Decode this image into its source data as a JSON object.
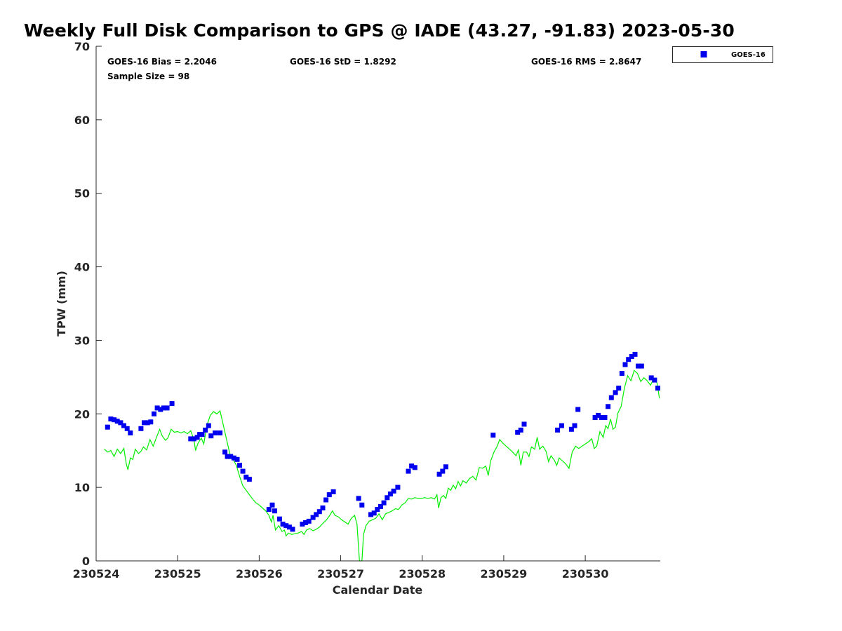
{
  "chart_data": {
    "type": "scatter",
    "title": "Weekly Full Disk Comparison to GPS @ IADE (43.27, -91.83) 2023-05-30",
    "xlabel": "Calendar Date",
    "ylabel": "TPW (mm)",
    "xlim": [
      230524,
      230530.92
    ],
    "ylim": [
      0,
      70
    ],
    "x_ticks": [
      "230524",
      "230525",
      "230526",
      "230527",
      "230528",
      "230529",
      "230530"
    ],
    "y_ticks": [
      "0",
      "10",
      "20",
      "30",
      "40",
      "50",
      "60",
      "70"
    ],
    "grid": false,
    "legend_position": "top-right outside",
    "stats": {
      "bias": "GOES-16 Bias = 2.2046",
      "std": "GOES-16 StD = 1.8292",
      "rms": "GOES-16 RMS = 2.8647",
      "sample_size": "Sample Size = 98"
    },
    "series": [
      {
        "name": "GOES-16",
        "kind": "markers",
        "color": "#0000ee",
        "points": [
          [
            230524.14,
            18.2
          ],
          [
            230524.18,
            19.3
          ],
          [
            230524.22,
            19.2
          ],
          [
            230524.26,
            19.0
          ],
          [
            230524.3,
            18.8
          ],
          [
            230524.34,
            18.4
          ],
          [
            230524.38,
            18.0
          ],
          [
            230524.42,
            17.4
          ],
          [
            230524.55,
            18.0
          ],
          [
            230524.59,
            18.8
          ],
          [
            230524.63,
            18.8
          ],
          [
            230524.67,
            18.9
          ],
          [
            230524.71,
            20.0
          ],
          [
            230524.75,
            20.8
          ],
          [
            230524.79,
            20.6
          ],
          [
            230524.83,
            20.8
          ],
          [
            230524.87,
            20.8
          ],
          [
            230524.93,
            21.4
          ],
          [
            230525.16,
            16.6
          ],
          [
            230525.2,
            16.6
          ],
          [
            230525.24,
            16.8
          ],
          [
            230525.27,
            17.2
          ],
          [
            230525.3,
            17.2
          ],
          [
            230525.34,
            17.8
          ],
          [
            230525.38,
            18.4
          ],
          [
            230525.41,
            17.0
          ],
          [
            230525.46,
            17.4
          ],
          [
            230525.52,
            17.4
          ],
          [
            230525.58,
            14.8
          ],
          [
            230525.61,
            14.2
          ],
          [
            230525.65,
            14.2
          ],
          [
            230525.69,
            14.0
          ],
          [
            230525.73,
            13.8
          ],
          [
            230525.76,
            13.0
          ],
          [
            230525.8,
            12.2
          ],
          [
            230525.84,
            11.4
          ],
          [
            230525.88,
            11.1
          ],
          [
            230526.12,
            7.0
          ],
          [
            230526.16,
            7.6
          ],
          [
            230526.19,
            6.8
          ],
          [
            230526.25,
            5.7
          ],
          [
            230526.29,
            5.0
          ],
          [
            230526.33,
            4.8
          ],
          [
            230526.37,
            4.6
          ],
          [
            230526.41,
            4.3
          ],
          [
            230526.53,
            5.0
          ],
          [
            230526.57,
            5.2
          ],
          [
            230526.61,
            5.4
          ],
          [
            230526.66,
            5.9
          ],
          [
            230526.7,
            6.3
          ],
          [
            230526.74,
            6.7
          ],
          [
            230526.78,
            7.2
          ],
          [
            230526.82,
            8.3
          ],
          [
            230526.86,
            9.0
          ],
          [
            230526.91,
            9.4
          ],
          [
            230527.22,
            8.5
          ],
          [
            230527.26,
            7.6
          ],
          [
            230527.37,
            6.3
          ],
          [
            230527.41,
            6.5
          ],
          [
            230527.45,
            7.0
          ],
          [
            230527.49,
            7.4
          ],
          [
            230527.53,
            7.9
          ],
          [
            230527.57,
            8.6
          ],
          [
            230527.61,
            9.1
          ],
          [
            230527.65,
            9.5
          ],
          [
            230527.7,
            10.0
          ],
          [
            230527.83,
            12.2
          ],
          [
            230527.87,
            12.9
          ],
          [
            230527.91,
            12.7
          ],
          [
            230528.21,
            11.8
          ],
          [
            230528.25,
            12.2
          ],
          [
            230528.29,
            12.8
          ],
          [
            230528.87,
            17.1
          ],
          [
            230529.17,
            17.5
          ],
          [
            230529.21,
            17.8
          ],
          [
            230529.25,
            18.6
          ],
          [
            230529.66,
            17.8
          ],
          [
            230529.71,
            18.4
          ],
          [
            230529.83,
            17.9
          ],
          [
            230529.87,
            18.4
          ],
          [
            230529.91,
            20.6
          ],
          [
            230530.12,
            19.5
          ],
          [
            230530.16,
            19.8
          ],
          [
            230530.2,
            19.5
          ],
          [
            230530.24,
            19.5
          ],
          [
            230530.28,
            21.0
          ],
          [
            230530.32,
            22.2
          ],
          [
            230530.37,
            22.9
          ],
          [
            230530.41,
            23.5
          ],
          [
            230530.45,
            25.5
          ],
          [
            230530.49,
            26.7
          ],
          [
            230530.53,
            27.4
          ],
          [
            230530.57,
            27.8
          ],
          [
            230530.61,
            28.1
          ],
          [
            230530.65,
            26.5
          ],
          [
            230530.69,
            26.5
          ],
          [
            230530.81,
            24.9
          ],
          [
            230530.85,
            24.6
          ],
          [
            230530.89,
            23.5
          ]
        ]
      },
      {
        "kind": "line",
        "color": "#00ee00",
        "points": [
          [
            230524.1,
            15.2
          ],
          [
            230524.14,
            14.8
          ],
          [
            230524.18,
            15.0
          ],
          [
            230524.22,
            14.2
          ],
          [
            230524.26,
            15.2
          ],
          [
            230524.3,
            14.6
          ],
          [
            230524.34,
            15.3
          ],
          [
            230524.37,
            13.2
          ],
          [
            230524.39,
            12.4
          ],
          [
            230524.42,
            14.0
          ],
          [
            230524.45,
            13.8
          ],
          [
            230524.48,
            15.2
          ],
          [
            230524.52,
            14.6
          ],
          [
            230524.55,
            14.9
          ],
          [
            230524.58,
            15.5
          ],
          [
            230524.62,
            15.1
          ],
          [
            230524.66,
            16.5
          ],
          [
            230524.7,
            15.6
          ],
          [
            230524.74,
            16.8
          ],
          [
            230524.78,
            17.9
          ],
          [
            230524.81,
            17.0
          ],
          [
            230524.85,
            16.4
          ],
          [
            230524.88,
            16.7
          ],
          [
            230524.92,
            17.9
          ],
          [
            230524.96,
            17.5
          ],
          [
            230525.0,
            17.6
          ],
          [
            230525.04,
            17.4
          ],
          [
            230525.08,
            17.6
          ],
          [
            230525.12,
            17.3
          ],
          [
            230525.16,
            17.7
          ],
          [
            230525.2,
            16.5
          ],
          [
            230525.22,
            15.0
          ],
          [
            230525.25,
            16.0
          ],
          [
            230525.29,
            16.7
          ],
          [
            230525.32,
            15.9
          ],
          [
            230525.36,
            18.5
          ],
          [
            230525.4,
            19.8
          ],
          [
            230525.44,
            20.3
          ],
          [
            230525.48,
            20.0
          ],
          [
            230525.52,
            20.4
          ],
          [
            230525.56,
            18.5
          ],
          [
            230525.6,
            16.5
          ],
          [
            230525.64,
            14.6
          ],
          [
            230525.68,
            13.8
          ],
          [
            230525.72,
            13.0
          ],
          [
            230525.76,
            11.5
          ],
          [
            230525.8,
            10.2
          ],
          [
            230525.84,
            9.6
          ],
          [
            230525.88,
            9.0
          ],
          [
            230525.92,
            8.4
          ],
          [
            230525.96,
            7.9
          ],
          [
            230526.0,
            7.6
          ],
          [
            230526.04,
            7.2
          ],
          [
            230526.08,
            6.8
          ],
          [
            230526.12,
            6.2
          ],
          [
            230526.15,
            5.3
          ],
          [
            230526.17,
            6.2
          ],
          [
            230526.2,
            4.2
          ],
          [
            230526.24,
            4.8
          ],
          [
            230526.28,
            4.0
          ],
          [
            230526.31,
            4.2
          ],
          [
            230526.33,
            3.4
          ],
          [
            230526.36,
            3.8
          ],
          [
            230526.4,
            3.6
          ],
          [
            230526.44,
            3.7
          ],
          [
            230526.48,
            3.8
          ],
          [
            230526.52,
            4.0
          ],
          [
            230526.55,
            3.6
          ],
          [
            230526.58,
            4.2
          ],
          [
            230526.62,
            4.4
          ],
          [
            230526.66,
            4.1
          ],
          [
            230526.7,
            4.3
          ],
          [
            230526.74,
            4.6
          ],
          [
            230526.78,
            5.1
          ],
          [
            230526.82,
            5.5
          ],
          [
            230526.86,
            6.1
          ],
          [
            230526.9,
            6.8
          ],
          [
            230526.93,
            6.2
          ],
          [
            230526.97,
            6.0
          ],
          [
            230527.01,
            5.6
          ],
          [
            230527.05,
            5.3
          ],
          [
            230527.09,
            5.0
          ],
          [
            230527.13,
            5.8
          ],
          [
            230527.17,
            6.2
          ],
          [
            230527.2,
            5.0
          ],
          [
            230527.23,
            0.0
          ],
          [
            230527.26,
            0.0
          ],
          [
            230527.28,
            3.6
          ],
          [
            230527.31,
            4.8
          ],
          [
            230527.35,
            5.4
          ],
          [
            230527.39,
            5.6
          ],
          [
            230527.43,
            5.8
          ],
          [
            230527.47,
            6.4
          ],
          [
            230527.51,
            5.6
          ],
          [
            230527.55,
            6.4
          ],
          [
            230527.59,
            6.6
          ],
          [
            230527.63,
            6.8
          ],
          [
            230527.67,
            7.1
          ],
          [
            230527.71,
            7.0
          ],
          [
            230527.75,
            7.6
          ],
          [
            230527.79,
            7.9
          ],
          [
            230527.83,
            8.5
          ],
          [
            230527.87,
            8.4
          ],
          [
            230527.91,
            8.6
          ],
          [
            230527.95,
            8.5
          ],
          [
            230527.99,
            8.5
          ],
          [
            230528.03,
            8.6
          ],
          [
            230528.07,
            8.5
          ],
          [
            230528.11,
            8.6
          ],
          [
            230528.15,
            8.4
          ],
          [
            230528.18,
            9.0
          ],
          [
            230528.2,
            7.2
          ],
          [
            230528.23,
            8.6
          ],
          [
            230528.26,
            8.9
          ],
          [
            230528.29,
            8.5
          ],
          [
            230528.32,
            9.9
          ],
          [
            230528.35,
            9.6
          ],
          [
            230528.38,
            10.3
          ],
          [
            230528.41,
            9.8
          ],
          [
            230528.44,
            10.8
          ],
          [
            230528.47,
            10.2
          ],
          [
            230528.5,
            10.9
          ],
          [
            230528.54,
            10.6
          ],
          [
            230528.58,
            11.2
          ],
          [
            230528.62,
            11.5
          ],
          [
            230528.66,
            11.0
          ],
          [
            230528.7,
            12.7
          ],
          [
            230528.74,
            12.6
          ],
          [
            230528.78,
            12.9
          ],
          [
            230528.81,
            11.6
          ],
          [
            230528.84,
            13.6
          ],
          [
            230528.88,
            14.8
          ],
          [
            230528.92,
            15.6
          ],
          [
            230528.95,
            16.5
          ],
          [
            230528.99,
            16.0
          ],
          [
            230529.03,
            15.6
          ],
          [
            230529.07,
            15.2
          ],
          [
            230529.11,
            14.8
          ],
          [
            230529.15,
            14.3
          ],
          [
            230529.18,
            15.1
          ],
          [
            230529.21,
            13.0
          ],
          [
            230529.24,
            14.8
          ],
          [
            230529.28,
            14.8
          ],
          [
            230529.31,
            14.2
          ],
          [
            230529.34,
            15.5
          ],
          [
            230529.38,
            15.2
          ],
          [
            230529.41,
            16.8
          ],
          [
            230529.44,
            15.2
          ],
          [
            230529.48,
            15.6
          ],
          [
            230529.52,
            14.9
          ],
          [
            230529.55,
            13.5
          ],
          [
            230529.58,
            14.3
          ],
          [
            230529.62,
            13.7
          ],
          [
            230529.65,
            13.0
          ],
          [
            230529.68,
            14.0
          ],
          [
            230529.72,
            13.6
          ],
          [
            230529.76,
            13.2
          ],
          [
            230529.8,
            12.6
          ],
          [
            230529.84,
            14.8
          ],
          [
            230529.88,
            15.6
          ],
          [
            230529.92,
            15.3
          ],
          [
            230529.96,
            15.6
          ],
          [
            230530.0,
            15.9
          ],
          [
            230530.04,
            16.2
          ],
          [
            230530.08,
            16.6
          ],
          [
            230530.11,
            15.3
          ],
          [
            230530.14,
            15.6
          ],
          [
            230530.18,
            17.6
          ],
          [
            230530.22,
            16.8
          ],
          [
            230530.25,
            18.4
          ],
          [
            230530.28,
            18.0
          ],
          [
            230530.31,
            19.3
          ],
          [
            230530.34,
            17.9
          ],
          [
            230530.37,
            18.2
          ],
          [
            230530.4,
            20.1
          ],
          [
            230530.44,
            21.0
          ],
          [
            230530.48,
            23.5
          ],
          [
            230530.52,
            25.2
          ],
          [
            230530.56,
            24.5
          ],
          [
            230530.6,
            25.9
          ],
          [
            230530.64,
            25.5
          ],
          [
            230530.68,
            24.4
          ],
          [
            230530.72,
            24.9
          ],
          [
            230530.76,
            24.5
          ],
          [
            230530.8,
            23.9
          ],
          [
            230530.84,
            24.8
          ],
          [
            230530.88,
            24.2
          ],
          [
            230530.91,
            22.1
          ]
        ]
      }
    ]
  }
}
